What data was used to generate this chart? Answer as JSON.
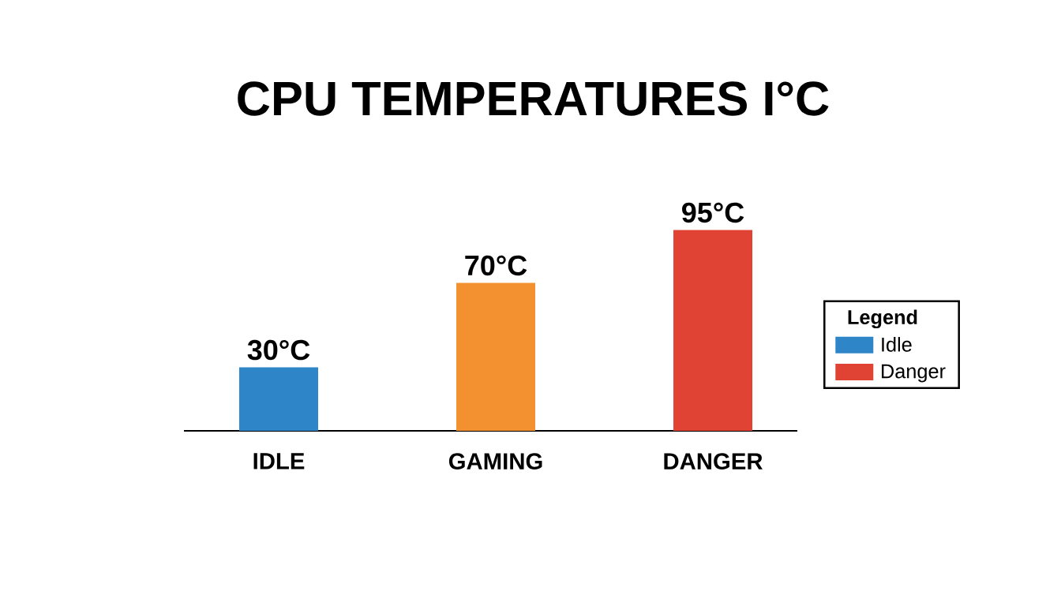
{
  "chart_data": {
    "type": "bar",
    "title": "CPU TEMPERATURES I°C",
    "categories": [
      "IDLE",
      "GAMING",
      "DANGER"
    ],
    "series": [
      {
        "name": "Idle",
        "color": "#2e86c8",
        "values": [
          30,
          null,
          null
        ],
        "value_labels": [
          "30°C",
          null,
          null
        ]
      },
      {
        "color": "#f39130",
        "values": [
          null,
          70,
          null
        ],
        "value_labels": [
          null,
          "70°C",
          null
        ]
      },
      {
        "name": "Danger",
        "color": "#e04333",
        "values": [
          null,
          null,
          95
        ],
        "value_labels": [
          null,
          null,
          "95°C"
        ]
      }
    ],
    "legend": "right",
    "legend_title": "Legend"
  }
}
